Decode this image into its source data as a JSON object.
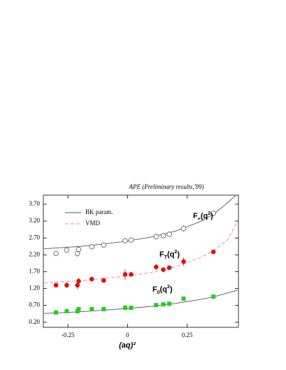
{
  "chart_data": {
    "type": "scatter",
    "title": "APE (Preliminary results,'99)",
    "x_label": "(aq)²",
    "xlim": [
      -0.353,
      0.465
    ],
    "ylim": [
      0.05,
      3.97
    ],
    "xticks": [
      -0.25,
      0,
      0.25
    ],
    "yticks": [
      {
        "value": 0.2,
        "label": "0.20"
      },
      {
        "value": 0.7,
        "label": "0.70"
      },
      {
        "value": 1.2,
        "label": "1.20"
      },
      {
        "value": 1.7,
        "label": "1.70"
      },
      {
        "value": 2.2,
        "label": "2.20"
      },
      {
        "value": 2.7,
        "label": "2.70"
      },
      {
        "value": 3.2,
        "label": "3.20"
      },
      {
        "value": 3.7,
        "label": "3.70"
      }
    ],
    "points": [
      {
        "marker": "open-circle",
        "color": "#666666",
        "x": [
          -0.3,
          -0.255,
          -0.21,
          -0.205,
          -0.15,
          -0.1,
          -0.01,
          0.015,
          0.12,
          0.15,
          0.175,
          0.235,
          0.36
        ],
        "values": [
          2.24,
          2.34,
          2.24,
          2.36,
          2.44,
          2.49,
          2.62,
          2.64,
          2.74,
          2.77,
          2.81,
          2.98,
          3.43
        ],
        "errors": [
          0.07,
          0.08,
          0.1,
          0.09,
          0.05,
          0.05,
          0.06,
          0.05,
          0.08,
          0.05,
          0.05,
          0.1,
          0.06
        ]
      },
      {
        "marker": "filled-circle",
        "color": "#e01010",
        "x": [
          -0.3,
          -0.255,
          -0.21,
          -0.205,
          -0.15,
          -0.1,
          -0.01,
          0.015,
          0.12,
          0.15,
          0.175,
          0.235,
          0.36
        ],
        "values": [
          1.3,
          1.3,
          1.3,
          1.42,
          1.48,
          1.44,
          1.62,
          1.62,
          1.84,
          1.76,
          1.82,
          2.0,
          2.29
        ],
        "errors": [
          0.07,
          0.08,
          0.12,
          0.1,
          0.05,
          0.06,
          0.16,
          0.06,
          0.08,
          0.05,
          0.05,
          0.12,
          0.06
        ]
      },
      {
        "marker": "square",
        "color": "#22cc22",
        "x": [
          -0.3,
          -0.255,
          -0.21,
          -0.205,
          -0.15,
          -0.1,
          -0.01,
          0.015,
          0.12,
          0.15,
          0.175,
          0.235,
          0.36
        ],
        "values": [
          0.49,
          0.53,
          0.53,
          0.59,
          0.59,
          0.59,
          0.63,
          0.63,
          0.71,
          0.73,
          0.75,
          0.9,
          0.96
        ],
        "errors": [
          0.04,
          0.05,
          0.08,
          0.06,
          0.03,
          0.03,
          0.05,
          0.04,
          0.04,
          0.03,
          0.03,
          0.06,
          0.04
        ]
      }
    ],
    "series": [
      {
        "name": "BK param.",
        "color": "#555555",
        "dashed": false,
        "lines": [
          {
            "x": [
              -0.35,
              -0.2,
              -0.1,
              0,
              0.1,
              0.2,
              0.3,
              0.36,
              0.42,
              0.455
            ],
            "values": [
              2.38,
              2.45,
              2.52,
              2.61,
              2.73,
              2.9,
              3.17,
              3.4,
              3.75,
              3.97
            ]
          },
          {
            "x": [
              -0.35,
              -0.2,
              -0.1,
              0,
              0.1,
              0.2,
              0.3,
              0.36,
              0.46
            ],
            "values": [
              0.46,
              0.51,
              0.56,
              0.61,
              0.67,
              0.76,
              0.87,
              0.95,
              1.15
            ]
          }
        ]
      },
      {
        "name": "VMD",
        "color": "#ff6fa8",
        "dashed": true,
        "lines": [
          {
            "x": [
              -0.35,
              -0.2,
              -0.1,
              0,
              0.1,
              0.2,
              0.3,
              0.36,
              0.42,
              0.46
            ],
            "values": [
              1.37,
              1.43,
              1.5,
              1.57,
              1.68,
              1.84,
              2.1,
              2.32,
              2.65,
              3.18
            ]
          }
        ]
      }
    ],
    "annotations": [
      [
        "F",
        "+",
        "(q",
        "2",
        ")"
      ],
      [
        "F",
        "T",
        "(q",
        "2",
        ")"
      ],
      [
        "F",
        "0",
        "(q",
        "2",
        ")"
      ]
    ]
  }
}
